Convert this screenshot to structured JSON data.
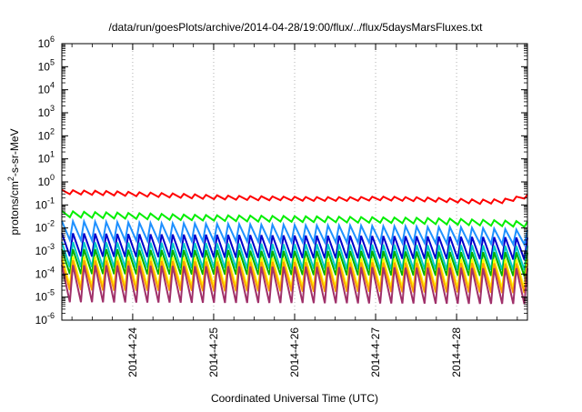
{
  "chart_data": {
    "type": "line",
    "title": "/data/run/goesPlots/archive/2014-04-28/19:00/flux/../flux/5daysMarsFluxes.txt",
    "xlabel": "Coordinated Universal Time (UTC)",
    "ylabel": "protons/cm²-s-sr-MeV",
    "yscale": "log",
    "ylim": [
      1e-06,
      1000000.0
    ],
    "xlim": [
      "2014-04-23 03:00",
      "2014-04-28 21:00"
    ],
    "x_ticks": [
      "2014-4-24",
      "2014-4-25",
      "2014-4-26",
      "2014-4-27",
      "2014-4-28"
    ],
    "y_ticks": [
      {
        "base": "10",
        "exp": "-6"
      },
      {
        "base": "10",
        "exp": "-5"
      },
      {
        "base": "10",
        "exp": "-4"
      },
      {
        "base": "10",
        "exp": "-3"
      },
      {
        "base": "10",
        "exp": "-2"
      },
      {
        "base": "10",
        "exp": "-1"
      },
      {
        "base": "10",
        "exp": "0"
      },
      {
        "base": "10",
        "exp": "1"
      },
      {
        "base": "10",
        "exp": "2"
      },
      {
        "base": "10",
        "exp": "3"
      },
      {
        "base": "10",
        "exp": "4"
      },
      {
        "base": "10",
        "exp": "5"
      },
      {
        "base": "10",
        "exp": "6"
      }
    ],
    "grid": true,
    "cycles": 42,
    "series": [
      {
        "color": "#ff0000",
        "high": [
          0.45,
          0.42,
          0.4,
          0.36,
          0.33,
          0.3,
          0.27,
          0.25,
          0.24,
          0.23,
          0.22,
          0.22,
          0.22,
          0.23,
          0.22,
          0.21,
          0.19,
          0.17,
          0.18,
          0.28
        ],
        "low": [
          0.3,
          0.28,
          0.26,
          0.24,
          0.22,
          0.2,
          0.18,
          0.17,
          0.16,
          0.16,
          0.15,
          0.15,
          0.15,
          0.16,
          0.15,
          0.14,
          0.13,
          0.11,
          0.12,
          0.2
        ]
      },
      {
        "color": "#00ee00",
        "high": [
          0.055,
          0.05,
          0.047,
          0.044,
          0.041,
          0.038,
          0.036,
          0.035,
          0.034,
          0.033,
          0.032,
          0.031,
          0.03,
          0.029,
          0.028,
          0.027,
          0.025,
          0.023,
          0.021,
          0.019
        ],
        "low": [
          0.03,
          0.028,
          0.026,
          0.025,
          0.023,
          0.022,
          0.021,
          0.02,
          0.019,
          0.019,
          0.018,
          0.018,
          0.017,
          0.017,
          0.016,
          0.015,
          0.014,
          0.013,
          0.012,
          0.011
        ]
      },
      {
        "color": "#1e90ff",
        "high": [
          0.02,
          0.019,
          0.018,
          0.017,
          0.016,
          0.016,
          0.015,
          0.015,
          0.014,
          0.014,
          0.013,
          0.013,
          0.013,
          0.012,
          0.012,
          0.011,
          0.011,
          0.01,
          0.009,
          0.008
        ],
        "low": [
          0.003,
          0.0029,
          0.0028,
          0.0028,
          0.0027,
          0.0027,
          0.0026,
          0.0026,
          0.0025,
          0.0025,
          0.0024,
          0.0024,
          0.0023,
          0.0023,
          0.0022,
          0.0022,
          0.0021,
          0.0021,
          0.002,
          0.0019
        ]
      },
      {
        "color": "#0000cc",
        "high": [
          0.006,
          0.0058,
          0.0056,
          0.0054,
          0.0053,
          0.0052,
          0.0051,
          0.005,
          0.0049,
          0.0048,
          0.0047,
          0.0046,
          0.0046,
          0.0045,
          0.0044,
          0.0043,
          0.0042,
          0.0041,
          0.004,
          0.0038
        ],
        "low": [
          0.0006,
          0.00058,
          0.00056,
          0.00055,
          0.00054,
          0.00053,
          0.00052,
          0.00051,
          0.0005,
          0.0005,
          0.00049,
          0.00048,
          0.00048,
          0.00047,
          0.00046,
          0.00046,
          0.00045,
          0.00044,
          0.00043,
          0.00042
        ]
      },
      {
        "color": "#00c8c8",
        "high": [
          0.0025,
          0.0024,
          0.0024,
          0.0023,
          0.0023,
          0.0022,
          0.0022,
          0.0021,
          0.0021,
          0.002,
          0.002,
          0.002,
          0.0019,
          0.0019,
          0.0019,
          0.0018,
          0.0018,
          0.0018,
          0.0017,
          0.0017
        ],
        "low": [
          0.0002,
          0.0002,
          0.00019,
          0.00019,
          0.00019,
          0.00018,
          0.00018,
          0.00018,
          0.00017,
          0.00017,
          0.00017,
          0.00017,
          0.00016,
          0.00016,
          0.00016,
          0.00016,
          0.00015,
          0.00015,
          0.00015,
          0.00015
        ]
      },
      {
        "color": "#00b000",
        "high": [
          0.0012,
          0.0012,
          0.0012,
          0.0011,
          0.0011,
          0.0011,
          0.0011,
          0.0011,
          0.001,
          0.001,
          0.001,
          0.001,
          0.001,
          0.001,
          0.00095,
          0.00095,
          0.0009,
          0.0009,
          0.0009,
          0.00085
        ],
        "low": [
          0.0001,
          0.0001,
          0.0001,
          9.8e-05,
          9.7e-05,
          9.6e-05,
          9.5e-05,
          9.4e-05,
          9.3e-05,
          9.2e-05,
          9.1e-05,
          9e-05,
          8.9e-05,
          8.8e-05,
          8.7e-05,
          8.6e-05,
          8.5e-05,
          8.4e-05,
          8.3e-05,
          8.2e-05
        ]
      },
      {
        "color": "#ffff00",
        "high": [
          0.0006,
          0.00058,
          0.00057,
          0.00056,
          0.00055,
          0.00054,
          0.00053,
          0.00052,
          0.00051,
          0.0005,
          0.0005,
          0.00049,
          0.00048,
          0.00048,
          0.00047,
          0.00046,
          0.00046,
          0.00045,
          0.00044,
          0.00044
        ],
        "low": [
          3e-05,
          2.9e-05,
          2.9e-05,
          2.8e-05,
          2.8e-05,
          2.8e-05,
          2.7e-05,
          2.7e-05,
          2.7e-05,
          2.6e-05,
          2.6e-05,
          2.6e-05,
          2.5e-05,
          2.5e-05,
          2.5e-05,
          2.4e-05,
          2.4e-05,
          2.4e-05,
          2.3e-05,
          2.3e-05
        ]
      },
      {
        "color": "#ffa000",
        "high": [
          0.0004,
          0.00039,
          0.00038,
          0.00037,
          0.00037,
          0.00036,
          0.00035,
          0.00035,
          0.00034,
          0.00034,
          0.00033,
          0.00033,
          0.00032,
          0.00032,
          0.00031,
          0.00031,
          0.0003,
          0.0003,
          0.00029,
          0.00029
        ],
        "low": [
          2e-05,
          2e-05,
          1.9e-05,
          1.9e-05,
          1.9e-05,
          1.9e-05,
          1.8e-05,
          1.8e-05,
          1.8e-05,
          1.8e-05,
          1.7e-05,
          1.7e-05,
          1.7e-05,
          1.7e-05,
          1.6e-05,
          1.6e-05,
          1.6e-05,
          1.6e-05,
          1.5e-05,
          1.5e-05
        ]
      },
      {
        "color": "#a0306a",
        "high": [
          0.00025,
          0.00024,
          0.00024,
          0.00023,
          0.00023,
          0.00022,
          0.00022,
          0.00022,
          0.00021,
          0.00021,
          0.00021,
          0.0002,
          0.0002,
          0.0002,
          0.00019,
          0.00019,
          0.00019,
          0.00018,
          0.00018,
          0.00018
        ],
        "low": [
          6e-06,
          6e-06,
          5.9e-06,
          5.8e-06,
          5.8e-06,
          5.7e-06,
          5.7e-06,
          5.6e-06,
          5.6e-06,
          5.5e-06,
          5.5e-06,
          5.4e-06,
          5.4e-06,
          5.3e-06,
          5.3e-06,
          5.2e-06,
          5.2e-06,
          5.1e-06,
          5.1e-06,
          5e-06
        ]
      }
    ]
  }
}
